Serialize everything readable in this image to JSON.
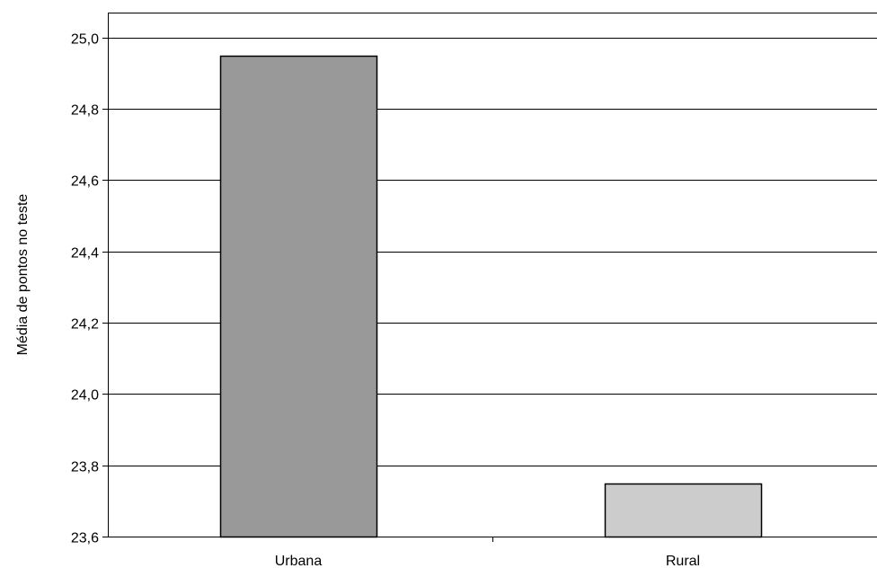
{
  "chart_data": {
    "type": "bar",
    "categories": [
      "Urbana",
      "Rural"
    ],
    "values": [
      24.95,
      23.75
    ],
    "ylabel": "Média de pontos no teste",
    "ylim": [
      23.6,
      25.0
    ],
    "yticks": [
      "23,6",
      "23,8",
      "24,0",
      "24,2",
      "24,4",
      "24,6",
      "24,8",
      "25,0"
    ],
    "grid": true,
    "legend": "none",
    "colors": [
      "#999999",
      "#cccccc"
    ],
    "edge_color": "#000000"
  }
}
